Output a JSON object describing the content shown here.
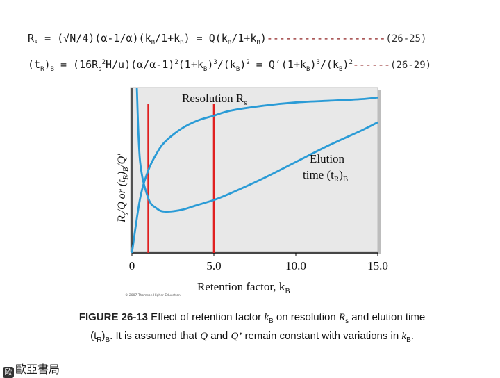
{
  "equations": {
    "eq1": {
      "lhs": "R",
      "lhs_sub": "s",
      "body_a": " = (√N/4)(α-1/α)(k",
      "sub_b1": "B",
      "body_b": "/1+k",
      "sub_b2": "B",
      "body_c": ") = Q(k",
      "sub_b3": "B",
      "body_d": "/1+k",
      "sub_b4": "B",
      "body_e": ")",
      "dashes": "-------------------",
      "number": "(26-25)"
    },
    "eq2": {
      "lhs": "(t",
      "lhs_sub": "R",
      "lhs_close": ")",
      "lhs_sub2": "B",
      "body_a": " = (16R",
      "sub_s": "s",
      "sup_2a": "2",
      "body_b": "H/u)(α/α-1)",
      "sup_2b": "2",
      "body_c": "(1+k",
      "sub_b1": "B",
      "body_d": ")",
      "sup_3a": "3",
      "body_e": "/(k",
      "sub_b2": "B",
      "body_f": ")",
      "sup_2c": "2",
      "body_g": " = Q′(1+k",
      "sub_b3": "B",
      "body_h": ")",
      "sup_3b": "3",
      "body_i": "/(k",
      "sub_b4": "B",
      "body_j": ")",
      "sup_2d": "2",
      "dashes": "------",
      "number": "(26-29)"
    }
  },
  "figure": {
    "legend_resolution": "Resolution R",
    "legend_resolution_sub": "s",
    "legend_elution_1": "Elution",
    "legend_elution_2": "time (t",
    "legend_elution_sub": "R",
    "legend_elution_close": ")",
    "legend_elution_sub2": "B",
    "ylabel": "R_s/Q or (t_R)_B/Q′",
    "ylabel_parts": [
      "R",
      "s",
      "/Q or (t",
      "R",
      ")",
      "B",
      "/Q′"
    ],
    "xlabel": "Retention factor, k",
    "xlabel_sub": "B",
    "xticks": [
      "0",
      "5.0",
      "10.0",
      "15.0"
    ],
    "copyright": "© 2007 Thomson Higher Education",
    "colors": {
      "curve": "#2a9bd6",
      "marker": "#e02020",
      "panel": "#c8c8c8",
      "axis": "#000000"
    }
  },
  "chart_data": {
    "type": "line",
    "xlabel": "Retention factor, kB",
    "ylabel": "Rs/Q or (tR)B/Q′",
    "xlim": [
      0,
      15
    ],
    "x_ticks": [
      0,
      5.0,
      10.0,
      15.0
    ],
    "series": [
      {
        "name": "Resolution Rs",
        "x": [
          0,
          0.5,
          1,
          1.5,
          2,
          3,
          4,
          5,
          6,
          8,
          10,
          12,
          14,
          15
        ],
        "y": [
          0,
          0.33,
          0.5,
          0.6,
          0.67,
          0.75,
          0.8,
          0.83,
          0.86,
          0.89,
          0.91,
          0.92,
          0.93,
          0.94
        ]
      },
      {
        "name": "Elution time (tR)B",
        "x": [
          0.3,
          0.5,
          1,
          1.5,
          2,
          3,
          4,
          5,
          6,
          8,
          10,
          12,
          14,
          15
        ],
        "y": [
          1.0,
          0.55,
          0.33,
          0.27,
          0.25,
          0.26,
          0.29,
          0.32,
          0.36,
          0.45,
          0.55,
          0.65,
          0.74,
          0.79
        ]
      }
    ],
    "markers_x": [
      1,
      5
    ]
  },
  "caption": {
    "fig_label": "FIGURE 26-13",
    "text_a": " Effect of retention factor ",
    "k": "k",
    "k_sub": "B",
    "text_b": " on resolution ",
    "rs": "R",
    "rs_sub": "s",
    "text_c": " and elution time",
    "tr_open": "(t",
    "tr_sub": "R",
    "tr_close": ")",
    "tr_sub2": "B",
    "text_d": ". It is assumed that ",
    "q": "Q",
    "text_e": " and ",
    "q2": "Q’",
    "text_f": " remain constant with variations in ",
    "k2": "k",
    "k2_sub": "B",
    "text_g": "."
  },
  "logo": {
    "mark": "歐",
    "text": "歐亞書局"
  }
}
